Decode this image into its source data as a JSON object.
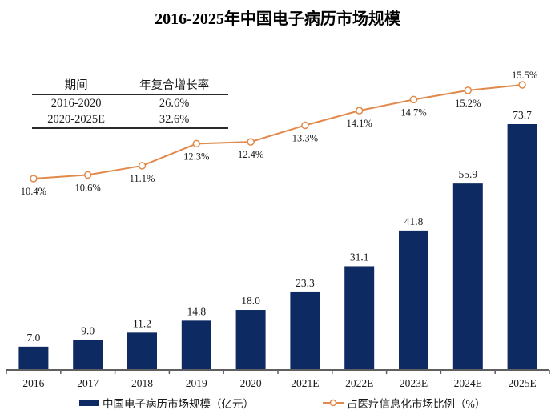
{
  "title": "2016-2025年中国电子病历市场规模",
  "cagr_table": {
    "headers": [
      "期间",
      "年复合增长率"
    ],
    "rows": [
      {
        "period": "2016-2020",
        "cagr": "26.6%"
      },
      {
        "period": "2020-2025E",
        "cagr": "32.6%"
      }
    ]
  },
  "legend": {
    "bar_label": "中国电子病历市场规模（亿元）",
    "line_label": "占医疗信息化市场比例（%）"
  },
  "colors": {
    "bar": "#0e2a62",
    "line": "#e0894a",
    "marker_fill": "#ffffff",
    "axis": "#5f5f5f",
    "text": "#1a1a1a"
  },
  "chart_data": {
    "type": "bar",
    "subtype": "combo-bar-line",
    "title": "2016-2025年中国电子病历市场规模",
    "categories": [
      "2016",
      "2017",
      "2018",
      "2019",
      "2020",
      "2021E",
      "2022E",
      "2023E",
      "2024E",
      "2025E"
    ],
    "series": [
      {
        "name": "中国电子病历市场规模（亿元）",
        "type": "bar",
        "axis": "left",
        "values": [
          7.0,
          9.0,
          11.2,
          14.8,
          18.0,
          23.3,
          31.1,
          41.8,
          55.9,
          73.7
        ]
      },
      {
        "name": "占医疗信息化市场比例（%）",
        "type": "line",
        "axis": "right",
        "values": [
          10.4,
          10.6,
          11.1,
          12.3,
          12.4,
          13.3,
          14.1,
          14.7,
          15.2,
          15.5
        ]
      }
    ],
    "xlabel": "",
    "ylabel": "",
    "ylim_left": [
      0,
      80
    ],
    "ylim_right": [
      10,
      16
    ],
    "grid": false,
    "legend_position": "bottom",
    "data_labels": true
  }
}
